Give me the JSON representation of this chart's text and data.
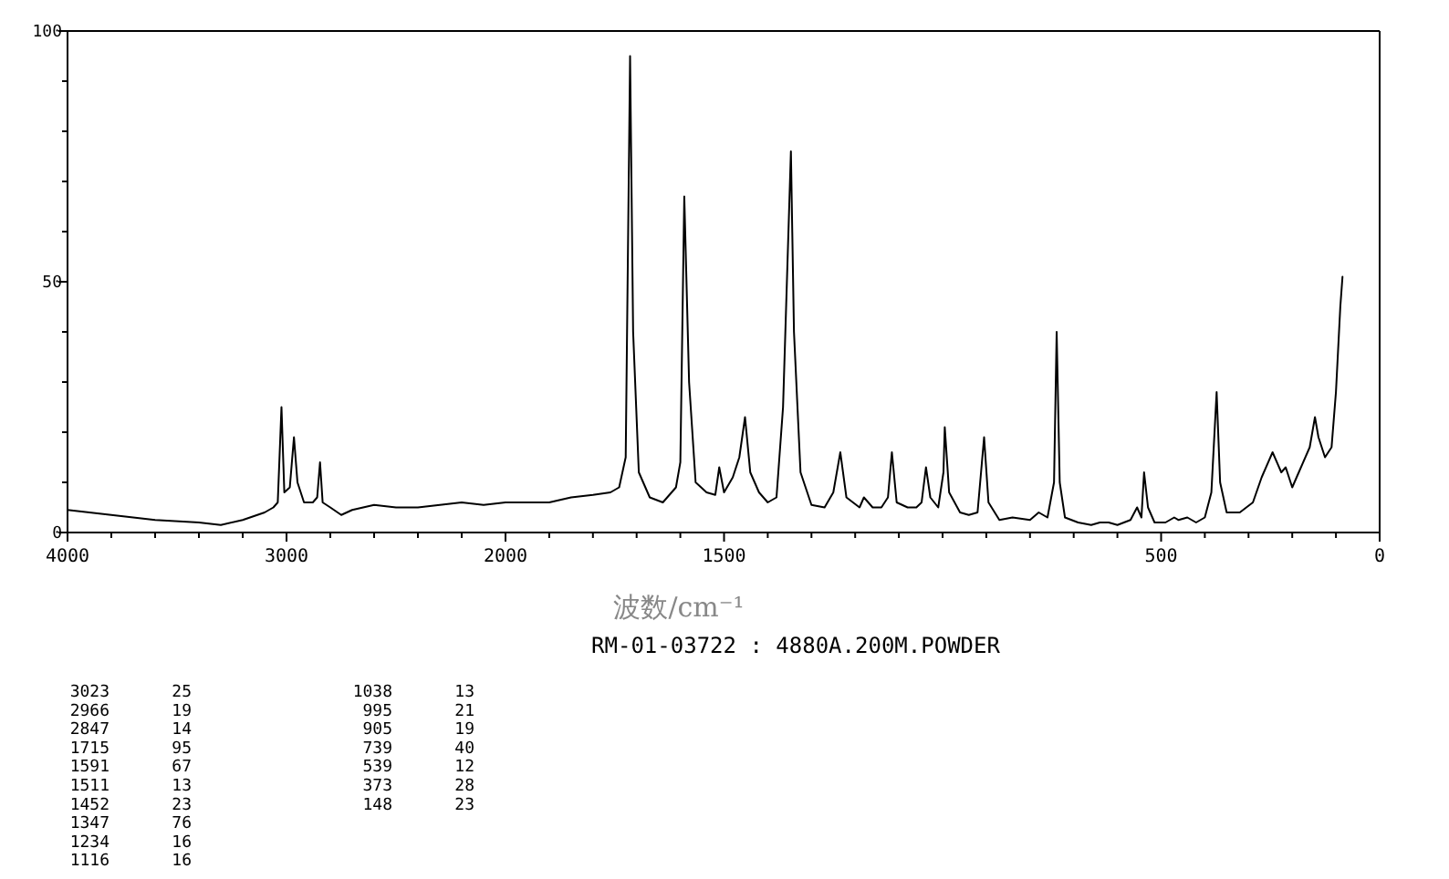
{
  "chart_data": [
    {
      "type": "line",
      "xlim": [
        4000,
        2000
      ],
      "ylim": [
        0,
        100
      ],
      "xticks": [
        4000,
        {
          "value": 3800,
          "label": null
        },
        {
          "value": 3600,
          "label": null
        },
        {
          "value": 3400,
          "label": null
        },
        {
          "value": 3200,
          "label": null
        },
        3000,
        {
          "value": 2800,
          "label": null
        },
        {
          "value": 2600,
          "label": null
        },
        {
          "value": 2400,
          "label": null
        },
        {
          "value": 2200,
          "label": null
        }
      ],
      "yticks": [
        0,
        {
          "value": 10,
          "label": null
        },
        {
          "value": 20,
          "label": null
        },
        {
          "value": 30,
          "label": null
        },
        {
          "value": 40,
          "label": null
        },
        50,
        {
          "value": 60,
          "label": null
        },
        {
          "value": 70,
          "label": null
        },
        {
          "value": 80,
          "label": null
        },
        {
          "value": 90,
          "label": null
        },
        100
      ],
      "series": [
        {
          "color": "#000000",
          "x": [
            4000,
            3800,
            3600,
            3400,
            3300,
            3200,
            3100,
            3060,
            3040,
            3023,
            3010,
            2985,
            2966,
            2950,
            2920,
            2880,
            2860,
            2847,
            2835,
            2800,
            2750,
            2700,
            2600,
            2500,
            2400,
            2300,
            2200,
            2100,
            2000
          ],
          "values": [
            4.5,
            3.5,
            2.5,
            2,
            1.5,
            2.5,
            4,
            5,
            6,
            25,
            8,
            9,
            19,
            10,
            6,
            6,
            7,
            14,
            6,
            5,
            3.5,
            4.5,
            5.5,
            5,
            5,
            5.5,
            6,
            5.5,
            6
          ]
        }
      ],
      "annotations": [
        "RM-01-03722 : 4880A.200M.POWDER",
        "3023 25",
        "2966 19",
        "2847 14",
        "1715 95",
        "1591 67",
        "1511 13",
        "1452 23",
        "1347 76",
        "1234 16",
        "1116 16",
        "1038 13",
        "995 21",
        "905 19",
        "739 40",
        "539 12",
        "373 28",
        "148 23"
      ]
    },
    {
      "type": "line",
      "xlabel": "波数/cm⁻¹",
      "xlim": [
        2000,
        0
      ],
      "ylim": [
        0,
        100
      ],
      "tick_labels": "x",
      "xticks": [
        2000,
        {
          "value": 1900,
          "label": null
        },
        {
          "value": 1800,
          "label": null
        },
        {
          "value": 1700,
          "label": null
        },
        {
          "value": 1600,
          "label": null
        },
        1500,
        {
          "value": 1400,
          "label": null
        },
        {
          "value": 1300,
          "label": null
        },
        {
          "value": 1200,
          "label": null
        },
        {
          "value": 1100,
          "label": null
        },
        {
          "value": 1000,
          "label": null
        },
        {
          "value": 900,
          "label": null
        },
        {
          "value": 800,
          "label": null
        },
        {
          "value": 700,
          "label": null
        },
        {
          "value": 600,
          "label": null
        },
        500,
        {
          "value": 400,
          "label": null
        },
        {
          "value": 300,
          "label": null
        },
        {
          "value": 200,
          "label": null
        },
        {
          "value": 100,
          "label": null
        },
        0
      ],
      "series": [
        {
          "color": "#000000",
          "x": [
            2000,
            1900,
            1850,
            1800,
            1760,
            1740,
            1725,
            1715,
            1708,
            1695,
            1670,
            1640,
            1610,
            1600,
            1591,
            1580,
            1565,
            1540,
            1520,
            1511,
            1500,
            1480,
            1465,
            1452,
            1440,
            1420,
            1400,
            1380,
            1365,
            1347,
            1340,
            1325,
            1300,
            1270,
            1250,
            1234,
            1220,
            1190,
            1180,
            1160,
            1140,
            1125,
            1116,
            1105,
            1080,
            1060,
            1048,
            1038,
            1028,
            1010,
            998,
            995,
            985,
            960,
            940,
            920,
            905,
            895,
            870,
            840,
            800,
            780,
            760,
            745,
            739,
            732,
            720,
            690,
            660,
            640,
            620,
            600,
            570,
            555,
            545,
            539,
            530,
            515,
            490,
            470,
            460,
            440,
            420,
            400,
            385,
            373,
            365,
            350,
            320,
            290,
            270,
            245,
            225,
            215,
            200,
            185,
            160,
            148,
            140,
            125,
            110,
            100,
            90,
            85
          ],
          "values": [
            6,
            6,
            7,
            7.5,
            8,
            9,
            15,
            95,
            40,
            12,
            7,
            6,
            9,
            14,
            67,
            30,
            10,
            8,
            7.5,
            13,
            8,
            11,
            15,
            23,
            12,
            8,
            6,
            7,
            25,
            76,
            40,
            12,
            5.5,
            5,
            8,
            16,
            7,
            5,
            7,
            5,
            5,
            7,
            16,
            6,
            5,
            5,
            6,
            13,
            7,
            5,
            12,
            21,
            8,
            4,
            3.5,
            4,
            19,
            6,
            2.5,
            3,
            2.5,
            4,
            3,
            10,
            40,
            10,
            3,
            2,
            1.5,
            2,
            2,
            1.5,
            2.5,
            5,
            3,
            12,
            5,
            2,
            2,
            3,
            2.5,
            3,
            2,
            3,
            8,
            28,
            10,
            4,
            4,
            6,
            11,
            16,
            12,
            13,
            9,
            12,
            17,
            23,
            19,
            15,
            17,
            28,
            45,
            51
          ]
        }
      ]
    }
  ]
}
